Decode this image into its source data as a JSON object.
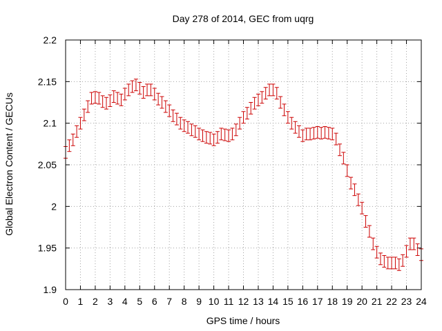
{
  "chart_data": {
    "type": "scatter",
    "title": "Day 278 of 2014, GEC from uqrg",
    "xlabel": "GPS time / hours",
    "ylabel": "Global Electron Content / GECUs",
    "xlim": [
      0,
      24
    ],
    "ylim": [
      1.9,
      2.2
    ],
    "x_ticks": [
      0,
      1,
      2,
      3,
      4,
      5,
      6,
      7,
      8,
      9,
      10,
      11,
      12,
      13,
      14,
      15,
      16,
      17,
      18,
      19,
      20,
      21,
      22,
      23,
      24
    ],
    "x_tick_labels": [
      "0",
      "1",
      "2",
      "3",
      "4",
      "5",
      "6",
      "7",
      "8",
      "9",
      "10",
      "11",
      "12",
      "13",
      "14",
      "15",
      "16",
      "17",
      "18",
      "19",
      "20",
      "21",
      "22",
      "23",
      "24"
    ],
    "y_ticks": [
      1.9,
      1.95,
      2.0,
      2.05,
      2.1,
      2.15,
      2.2
    ],
    "y_tick_labels": [
      "1.9",
      "1.95",
      "2",
      "2.05",
      "2.1",
      "2.15",
      "2.2"
    ],
    "grid": true,
    "color": "#cc0000",
    "error_bar": 0.007,
    "series": [
      {
        "x": [
          0,
          0.25,
          0.5,
          0.75,
          1,
          1.25,
          1.5,
          1.75,
          2,
          2.25,
          2.5,
          2.75,
          3,
          3.25,
          3.5,
          3.75,
          4,
          4.25,
          4.5,
          4.75,
          5,
          5.25,
          5.5,
          5.75,
          6,
          6.25,
          6.5,
          6.75,
          7,
          7.25,
          7.5,
          7.75,
          8,
          8.25,
          8.5,
          8.75,
          9,
          9.25,
          9.5,
          9.75,
          10,
          10.25,
          10.5,
          10.75,
          11,
          11.25,
          11.5,
          11.75,
          12,
          12.25,
          12.5,
          12.75,
          13,
          13.25,
          13.5,
          13.75,
          14,
          14.25,
          14.5,
          14.75,
          15,
          15.25,
          15.5,
          15.75,
          16,
          16.25,
          16.5,
          16.75,
          17,
          17.25,
          17.5,
          17.75,
          18,
          18.25,
          18.5,
          18.75,
          19,
          19.25,
          19.5,
          19.75,
          20,
          20.25,
          20.5,
          20.75,
          21,
          21.25,
          21.5,
          21.75,
          22,
          22.25,
          22.5,
          22.75,
          23,
          23.25,
          23.5,
          23.75,
          24
        ],
        "y": [
          2.065,
          2.073,
          2.08,
          2.09,
          2.1,
          2.11,
          2.12,
          2.13,
          2.131,
          2.13,
          2.126,
          2.124,
          2.127,
          2.132,
          2.13,
          2.128,
          2.135,
          2.14,
          2.144,
          2.146,
          2.142,
          2.137,
          2.14,
          2.14,
          2.135,
          2.129,
          2.125,
          2.12,
          2.115,
          2.109,
          2.105,
          2.1,
          2.097,
          2.095,
          2.092,
          2.09,
          2.087,
          2.085,
          2.083,
          2.082,
          2.08,
          2.083,
          2.087,
          2.086,
          2.085,
          2.087,
          2.092,
          2.1,
          2.107,
          2.112,
          2.118,
          2.124,
          2.128,
          2.131,
          2.136,
          2.14,
          2.14,
          2.136,
          2.125,
          2.116,
          2.107,
          2.1,
          2.095,
          2.09,
          2.085,
          2.087,
          2.087,
          2.088,
          2.089,
          2.088,
          2.089,
          2.088,
          2.087,
          2.081,
          2.068,
          2.058,
          2.043,
          2.028,
          2.02,
          2.008,
          1.998,
          1.982,
          1.97,
          1.955,
          1.945,
          1.937,
          1.934,
          1.932,
          1.932,
          1.932,
          1.93,
          1.935,
          1.946,
          1.955,
          1.955,
          1.948,
          1.942
        ]
      }
    ]
  }
}
